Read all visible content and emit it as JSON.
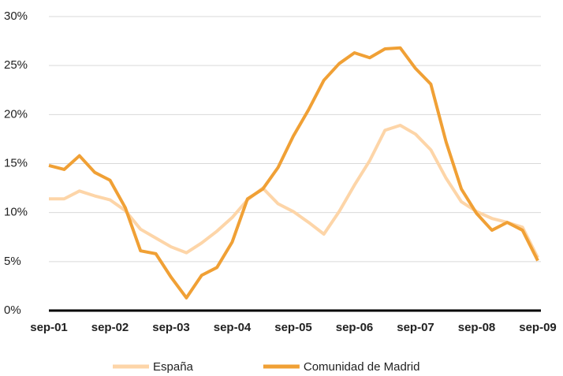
{
  "chart_data": {
    "type": "line",
    "categories": [
      "sep-01",
      null,
      null,
      null,
      "sep-02",
      null,
      null,
      null,
      "sep-03",
      null,
      null,
      null,
      "sep-04",
      null,
      null,
      null,
      "sep-05",
      null,
      null,
      null,
      "sep-06",
      null,
      null,
      null,
      "sep-07",
      null,
      null,
      null,
      "sep-08",
      null,
      null,
      null,
      "sep-09"
    ],
    "series": [
      {
        "name": "España",
        "color": "#fdd5a8",
        "values": [
          11.4,
          11.4,
          12.2,
          11.7,
          11.3,
          10.2,
          8.3,
          7.4,
          6.5,
          5.9,
          6.9,
          8.1,
          9.5,
          11.3,
          12.5,
          10.9,
          10.1,
          9.0,
          7.8,
          10.1,
          12.8,
          15.3,
          18.4,
          18.9,
          18.0,
          16.4,
          13.5,
          11.1,
          10.1,
          9.4,
          9.0,
          8.5,
          5.4
        ]
      },
      {
        "name": "Comunidad de Madrid",
        "color": "#f0a035",
        "values": [
          14.8,
          14.4,
          15.8,
          14.1,
          13.3,
          10.5,
          6.1,
          5.8,
          3.4,
          1.3,
          3.6,
          4.4,
          7.0,
          11.4,
          12.4,
          14.6,
          17.8,
          20.5,
          23.5,
          25.2,
          26.3,
          25.8,
          26.7,
          26.8,
          24.7,
          23.1,
          17.2,
          12.4,
          9.9,
          8.2,
          9.0,
          8.2,
          5.1
        ]
      }
    ],
    "ylim": [
      0,
      30
    ],
    "yticks": [
      {
        "value": 0,
        "label": "0%"
      },
      {
        "value": 5,
        "label": "5%"
      },
      {
        "value": 10,
        "label": "10%"
      },
      {
        "value": 15,
        "label": "15%"
      },
      {
        "value": 20,
        "label": "20%"
      },
      {
        "value": 25,
        "label": "25%"
      },
      {
        "value": 30,
        "label": "30%"
      }
    ],
    "grid": true,
    "legend": "bottom"
  }
}
